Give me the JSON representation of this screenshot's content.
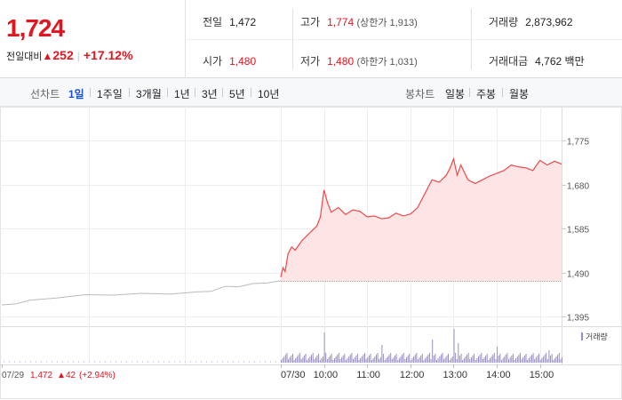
{
  "quote": {
    "price": "1,724",
    "change_label": "전일대비",
    "change_arrow": "▲",
    "change_diff": "252",
    "change_pct": "+17.12%",
    "prev_close_label": "전일",
    "prev_close": "1,472",
    "high_label": "고가",
    "high": "1,774",
    "upper_limit": "(상한가 1,913)",
    "volume_label": "거래량",
    "volume": "2,873,962",
    "open_label": "시가",
    "open": "1,480",
    "low_label": "저가",
    "low": "1,480",
    "lower_limit": "(하한가 1,031)",
    "value_label": "거래대금",
    "value": "4,762",
    "value_unit": "백만"
  },
  "toolbar": {
    "line_label": "선차트",
    "periods": [
      "1일",
      "1주일",
      "3개월",
      "1년",
      "3년",
      "5년",
      "10년"
    ],
    "active_period": "1일",
    "candle_label": "봉차트",
    "candles": [
      "일봉",
      "주봉",
      "월봉"
    ]
  },
  "chart_data": {
    "type": "line",
    "colors": {
      "line_today": "#f0484a",
      "fill_today": "#fde5e5",
      "line_prev": "#bbbbbb",
      "volume_bar": "#9b8ec4",
      "ref_line": "#555555"
    },
    "y_ticks": [
      1775,
      1680,
      1585,
      1490,
      1395
    ],
    "y_tick_labels": [
      "1,775",
      "1,680",
      "1,585",
      "1,490",
      "1,395"
    ],
    "ylim": [
      1395,
      1775
    ],
    "x_labels": [
      "07/29",
      "07/30",
      "10:00",
      "11:00",
      "12:00",
      "13:00",
      "14:00",
      "15:00"
    ],
    "reference_price": 1472,
    "prev_day_series": [
      [
        0,
        1420
      ],
      [
        0.05,
        1425
      ],
      [
        0.1,
        1430
      ],
      [
        0.2,
        1438
      ],
      [
        0.3,
        1442
      ],
      [
        0.4,
        1444
      ],
      [
        0.5,
        1445
      ],
      [
        0.6,
        1446
      ],
      [
        0.7,
        1448
      ],
      [
        0.75,
        1452
      ],
      [
        0.8,
        1460
      ],
      [
        0.85,
        1462
      ],
      [
        0.9,
        1466
      ],
      [
        0.95,
        1470
      ],
      [
        1.0,
        1472
      ]
    ],
    "today_series": [
      [
        "09:00",
        1480
      ],
      [
        "09:03",
        1500
      ],
      [
        "09:06",
        1492
      ],
      [
        "09:10",
        1530
      ],
      [
        "09:15",
        1545
      ],
      [
        "09:20",
        1538
      ],
      [
        "09:30",
        1560
      ],
      [
        "09:40",
        1575
      ],
      [
        "09:50",
        1590
      ],
      [
        "09:55",
        1610
      ],
      [
        "10:00",
        1668
      ],
      [
        "10:05",
        1640
      ],
      [
        "10:10",
        1620
      ],
      [
        "10:20",
        1630
      ],
      [
        "10:30",
        1615
      ],
      [
        "10:40",
        1625
      ],
      [
        "10:50",
        1622
      ],
      [
        "11:00",
        1610
      ],
      [
        "11:10",
        1612
      ],
      [
        "11:20",
        1606
      ],
      [
        "11:30",
        1608
      ],
      [
        "11:40",
        1618
      ],
      [
        "11:50",
        1612
      ],
      [
        "12:00",
        1616
      ],
      [
        "12:10",
        1630
      ],
      [
        "12:20",
        1660
      ],
      [
        "12:30",
        1690
      ],
      [
        "12:40",
        1685
      ],
      [
        "12:50",
        1700
      ],
      [
        "12:55",
        1715
      ],
      [
        "13:00",
        1735
      ],
      [
        "13:05",
        1700
      ],
      [
        "13:10",
        1722
      ],
      [
        "13:20",
        1690
      ],
      [
        "13:30",
        1682
      ],
      [
        "13:40",
        1690
      ],
      [
        "13:50",
        1698
      ],
      [
        "14:00",
        1704
      ],
      [
        "14:10",
        1710
      ],
      [
        "14:20",
        1722
      ],
      [
        "14:30",
        1718
      ],
      [
        "14:40",
        1716
      ],
      [
        "14:50",
        1710
      ],
      [
        "15:00",
        1732
      ],
      [
        "15:10",
        1722
      ],
      [
        "15:20",
        1730
      ],
      [
        "15:30",
        1724
      ]
    ],
    "volume_legend": "거래량",
    "footer_prev_date": "07/29",
    "footer_prev_price": "1,472",
    "footer_prev_arrow": "▲",
    "footer_prev_change": "42",
    "footer_prev_pct": "(+2.94%)"
  }
}
